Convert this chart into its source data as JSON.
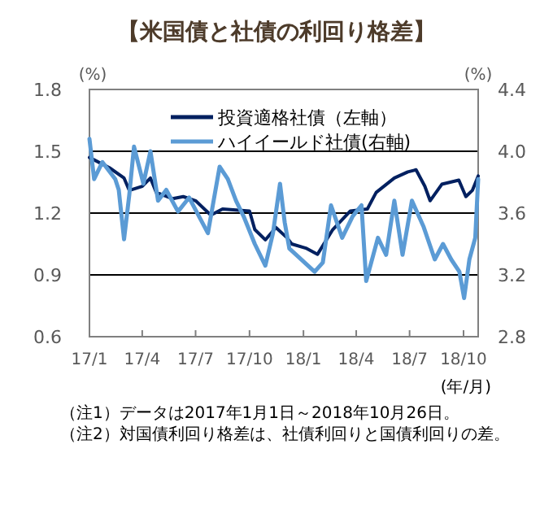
{
  "chart_data": {
    "type": "line",
    "title": "【米国債と社債の利回り格差】",
    "xlabel": "(年/月)",
    "ylabel": "(%)",
    "y2label": "(%)",
    "xlim": [
      "2017-01-01",
      "2018-10-26"
    ],
    "xticks": [
      {
        "value": "2017-01-01",
        "label": "17/1"
      },
      {
        "value": "2017-04-01",
        "label": "17/4"
      },
      {
        "value": "2017-07-01",
        "label": "17/7"
      },
      {
        "value": "2017-10-01",
        "label": "17/10"
      },
      {
        "value": "2018-01-01",
        "label": "18/1"
      },
      {
        "value": "2018-04-01",
        "label": "18/4"
      },
      {
        "value": "2018-07-01",
        "label": "18/7"
      },
      {
        "value": "2018-10-01",
        "label": "18/10"
      }
    ],
    "ylim": [
      0.6,
      1.8
    ],
    "yticks": [
      0.6,
      0.9,
      1.2,
      1.5,
      1.8
    ],
    "y2lim": [
      2.8,
      4.4
    ],
    "y2ticks": [
      2.8,
      3.2,
      3.6,
      {
        "value": 4,
        "label": "4.0"
      },
      4.4
    ],
    "grid": "y",
    "legend": "top",
    "series": [
      {
        "name": "投資適格社債（左軸）",
        "color": "#002060",
        "x": [
          "2017-01-01",
          "2017-02-04",
          "2017-03-01",
          "2017-03-10",
          "2017-04-01",
          "2017-04-15",
          "2017-04-25",
          "2017-05-23",
          "2017-06-10",
          "2017-07-01",
          "2017-07-27",
          "2017-08-16",
          "2017-10-01",
          "2017-10-10",
          "2017-10-28",
          "2017-11-15",
          "2017-12-04",
          "2017-12-12",
          "2018-01-05",
          "2018-01-25",
          "2018-02-20",
          "2018-03-22",
          "2018-04-20",
          "2018-05-05",
          "2018-06-05",
          "2018-06-28",
          "2018-07-12",
          "2018-07-27",
          "2018-08-05",
          "2018-08-25",
          "2018-09-23",
          "2018-10-05",
          "2018-10-16",
          "2018-10-26"
        ],
        "values": [
          1.47,
          1.42,
          1.37,
          1.31,
          1.33,
          1.37,
          1.3,
          1.27,
          1.28,
          1.26,
          1.19,
          1.22,
          1.21,
          1.12,
          1.07,
          1.13,
          1.08,
          1.05,
          1.03,
          1.0,
          1.12,
          1.21,
          1.22,
          1.3,
          1.37,
          1.4,
          1.41,
          1.33,
          1.26,
          1.34,
          1.36,
          1.28,
          1.31,
          1.38
        ]
      },
      {
        "name": "ハイイールド社債(右軸)",
        "color": "#5b9bd5",
        "axis": "y2",
        "x": [
          "2017-01-01",
          "2017-01-09",
          "2017-01-23",
          "2017-02-14",
          "2017-02-20",
          "2017-03-01",
          "2017-03-10",
          "2017-03-18",
          "2017-04-03",
          "2017-04-15",
          "2017-04-28",
          "2017-05-12",
          "2017-06-01",
          "2017-06-20",
          "2017-07-08",
          "2017-07-22",
          "2017-08-11",
          "2017-08-25",
          "2017-09-08",
          "2017-09-22",
          "2017-10-10",
          "2017-10-28",
          "2017-11-10",
          "2017-11-22",
          "2017-11-30",
          "2017-12-08",
          "2018-01-20",
          "2018-02-03",
          "2018-02-17",
          "2018-03-08",
          "2018-03-26",
          "2018-04-10",
          "2018-04-18",
          "2018-05-08",
          "2018-05-22",
          "2018-06-05",
          "2018-06-19",
          "2018-07-05",
          "2018-07-25",
          "2018-08-13",
          "2018-08-27",
          "2018-09-10",
          "2018-09-24",
          "2018-10-02",
          "2018-10-11",
          "2018-10-21",
          "2018-10-26"
        ],
        "values": [
          4.08,
          3.82,
          3.93,
          3.82,
          3.75,
          3.43,
          3.72,
          4.03,
          3.79,
          4.0,
          3.68,
          3.75,
          3.61,
          3.7,
          3.57,
          3.47,
          3.9,
          3.82,
          3.68,
          3.57,
          3.4,
          3.26,
          3.47,
          3.79,
          3.54,
          3.37,
          3.22,
          3.28,
          3.65,
          3.44,
          3.58,
          3.65,
          3.16,
          3.44,
          3.33,
          3.68,
          3.33,
          3.68,
          3.51,
          3.3,
          3.4,
          3.3,
          3.22,
          3.05,
          3.3,
          3.44,
          3.82
        ]
      }
    ],
    "annotations": [
      "（注1）データは2017年1月1日～2018年10月26日。",
      "（注2）対国債利回り格差は、社債利回りと国債利回りの差。"
    ]
  }
}
